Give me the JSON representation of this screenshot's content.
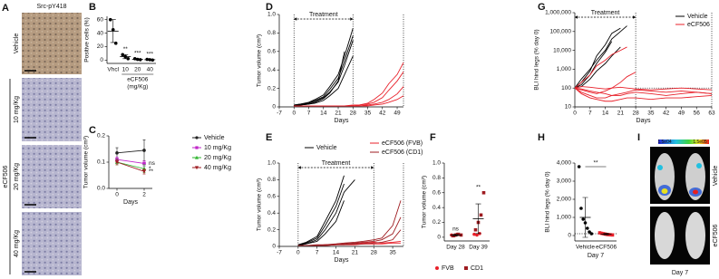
{
  "panel_a": {
    "label": "A",
    "title": "Src-pY418",
    "rows": [
      "Vehicle",
      "10 mg/Kg",
      "20 mg/Kg",
      "40 mg/Kg"
    ],
    "group": "eCF506"
  },
  "panel_i": {
    "label": "I",
    "scale": [
      "1.5e04",
      "1.5e05"
    ],
    "rows": [
      "Vehicle",
      "eCF506"
    ],
    "footer": "Day 7"
  },
  "chart_data": [
    {
      "type": "dot",
      "label": "B",
      "ylabel": "Positive cells (%)",
      "categories": [
        "Vhcl",
        "10",
        "20",
        "40"
      ],
      "xlabel": "eCF506",
      "xlabel2": "(mg/Kg)",
      "ylim": [
        -5,
        65
      ],
      "yticks": [
        0,
        20,
        40,
        60
      ],
      "series": [
        {
          "color": "#000000",
          "marker": "circle",
          "points": [
            [
              60,
              45,
              25
            ],
            [
              8,
              5,
              2
            ],
            [
              2,
              1,
              0.5
            ],
            [
              1,
              0.5,
              0
            ]
          ]
        }
      ],
      "means": [
        43,
        5,
        1.2,
        0.5
      ],
      "errors": [
        17,
        3,
        0.8,
        0.5
      ],
      "stars": [
        null,
        "**",
        "***",
        "***"
      ]
    },
    {
      "type": "line",
      "label": "C",
      "ylabel": "Tumor volume (cm³)",
      "xlabel": "Days",
      "x": [
        0,
        2
      ],
      "xlim": [
        -0.6,
        2.6
      ],
      "xticks": [
        0,
        2
      ],
      "ylim": [
        0,
        0.2
      ],
      "yticks": [
        {
          "value": 0,
          "label": "0.0"
        },
        0.1,
        0.2
      ],
      "legend": "right",
      "series": [
        {
          "name": "Vehicle",
          "color": "#222222",
          "marker": "circle",
          "values": [
            0.135,
            0.145
          ],
          "errors": [
            0.02,
            0.04
          ]
        },
        {
          "name": "10 mg/Kg",
          "color": "#c026c9",
          "marker": "square",
          "values": [
            0.11,
            0.095
          ],
          "errors": [
            0.01,
            0.01
          ]
        },
        {
          "name": "20 mg/Kg",
          "color": "#2fb52f",
          "marker": "triangle",
          "values": [
            0.1,
            0.075
          ],
          "errors": [
            0.01,
            0.015
          ]
        },
        {
          "name": "40 mg/Kg",
          "color": "#9e1b20",
          "marker": "triangle-down",
          "values": [
            0.1,
            0.065
          ],
          "errors": [
            0.01,
            0.01
          ]
        }
      ],
      "annotations": [
        null,
        "ns",
        "*",
        "**"
      ]
    },
    {
      "type": "line",
      "label": "D",
      "ylabel": "Tumor volume (cm³)",
      "xlabel": "Days",
      "x": [
        0,
        3,
        7,
        10,
        14,
        17,
        21,
        24,
        28,
        31,
        35,
        38,
        42,
        45,
        49,
        52
      ],
      "xlim": [
        -7,
        52
      ],
      "xticks": [
        -7,
        0,
        7,
        14,
        21,
        28,
        35,
        42,
        49
      ],
      "ylim": [
        0,
        1
      ],
      "yticks": [
        0,
        0.2,
        0.4,
        0.6,
        0.8,
        {
          "value": 1,
          "label": "1.0"
        }
      ],
      "treatment": {
        "label": "Treatment",
        "start": 0,
        "end": 28
      },
      "vlines": [
        0,
        28,
        52
      ],
      "series": [
        {
          "color": "#000000",
          "lines": [
            [
              0.02,
              0.03,
              0.05,
              0.08,
              0.13,
              0.22,
              0.35,
              0.55,
              0.85,
              null,
              null,
              null,
              null,
              null,
              null,
              null
            ],
            [
              0.02,
              0.03,
              0.04,
              0.07,
              0.11,
              0.19,
              0.31,
              0.5,
              0.77,
              null,
              null,
              null,
              null,
              null,
              null,
              null
            ],
            [
              0.02,
              0.02,
              0.04,
              0.06,
              0.1,
              0.16,
              0.27,
              0.45,
              0.72,
              null,
              null,
              null,
              null,
              null,
              null,
              null
            ],
            [
              0.01,
              0.02,
              0.03,
              0.05,
              0.09,
              0.15,
              0.28,
              0.6,
              null,
              null,
              null,
              null,
              null,
              null,
              null,
              null
            ],
            [
              0.01,
              0.02,
              0.03,
              0.04,
              0.07,
              0.12,
              0.2,
              0.35,
              0.55,
              null,
              null,
              null,
              null,
              null,
              null,
              null
            ]
          ]
        },
        {
          "color": "#e8202a",
          "lines": [
            [
              0.01,
              0.01,
              0.01,
              0.01,
              0.01,
              0.01,
              0.01,
              0.01,
              0.01,
              0.02,
              0.04,
              0.08,
              0.15,
              0.25,
              0.35,
              0.48
            ],
            [
              0.01,
              0.01,
              0.01,
              0.01,
              0.01,
              0.01,
              0.01,
              0.01,
              0.02,
              0.02,
              0.03,
              0.05,
              0.1,
              0.18,
              0.28,
              0.38
            ],
            [
              0.01,
              0.01,
              0.01,
              0.01,
              0.01,
              0.01,
              0.01,
              0.01,
              0.01,
              0.01,
              0.02,
              0.03,
              0.05,
              0.08,
              0.14,
              0.22
            ],
            [
              0.01,
              0.01,
              0.01,
              0.01,
              0.01,
              0.01,
              0.01,
              0.01,
              0.01,
              0.01,
              0.01,
              0.02,
              0.03,
              0.05,
              0.08,
              0.12
            ]
          ]
        }
      ]
    },
    {
      "type": "line",
      "label": "E",
      "ylabel": "Tumor volume (cm³)",
      "xlabel": "Days",
      "x": [
        0,
        3,
        7,
        10,
        14,
        17,
        21,
        24,
        28,
        31,
        35,
        38
      ],
      "xlim": [
        -7,
        39
      ],
      "xticks": [
        -7,
        0,
        7,
        14,
        21,
        28,
        35
      ],
      "ylim": [
        0,
        1
      ],
      "yticks": [
        0,
        0.2,
        0.4,
        0.6,
        0.8,
        {
          "value": 1,
          "label": "1.0"
        }
      ],
      "legend": "top",
      "treatment": {
        "label": "Treatment",
        "start": 0,
        "end": 28
      },
      "vlines": [
        0,
        28,
        39
      ],
      "series": [
        {
          "name": "Vehicle",
          "color": "#000000",
          "lines": [
            [
              0.02,
              0.05,
              0.12,
              0.3,
              0.55,
              0.85,
              null,
              null,
              null,
              null,
              null,
              null
            ],
            [
              0.02,
              0.04,
              0.1,
              0.25,
              0.48,
              0.75,
              null,
              null,
              null,
              null,
              null,
              null
            ],
            [
              0.02,
              0.03,
              0.08,
              0.2,
              0.4,
              0.65,
              0.8,
              null,
              null,
              null,
              null,
              null
            ],
            [
              0.01,
              0.03,
              0.06,
              0.15,
              0.3,
              0.55,
              null,
              null,
              null,
              null,
              null,
              null
            ]
          ]
        },
        {
          "name": "eCF506 (FVB)",
          "color": "#e8202a",
          "lines": [
            [
              0.01,
              0.01,
              0.01,
              0.02,
              0.02,
              0.03,
              0.03,
              0.04,
              0.05,
              0.04,
              0.05,
              0.06
            ],
            [
              0.01,
              0.01,
              0.01,
              0.01,
              0.02,
              0.02,
              0.02,
              0.03,
              0.03,
              0.03,
              0.04,
              0.04
            ]
          ]
        },
        {
          "name": "eCF506 (CD1)",
          "color": "#9e1b20",
          "lines": [
            [
              0.01,
              0.01,
              0.02,
              0.02,
              0.03,
              0.04,
              0.05,
              0.06,
              0.08,
              0.1,
              0.25,
              0.55
            ],
            [
              0.01,
              0.01,
              0.01,
              0.02,
              0.02,
              0.03,
              0.04,
              0.05,
              0.06,
              0.08,
              0.15,
              0.35
            ],
            [
              0.01,
              0.01,
              0.01,
              0.01,
              0.02,
              0.02,
              0.03,
              0.03,
              0.04,
              0.05,
              0.08,
              0.2
            ]
          ]
        }
      ]
    },
    {
      "type": "dot",
      "label": "F",
      "ylabel": "Tumor volume (cm³)",
      "categories": [
        "Day 28",
        "Day 39"
      ],
      "legend": "bottom",
      "ylim": [
        -0.05,
        1
      ],
      "yticks": [
        0,
        0.2,
        0.4,
        0.6,
        0.8,
        {
          "value": 1,
          "label": "1.0"
        }
      ],
      "series": [
        {
          "name": "FVB",
          "color": "#e8202a",
          "marker": "circle",
          "points": [
            [
              0.03,
              0.02,
              0.04
            ],
            [
              0.04,
              0.03,
              0.05
            ]
          ]
        },
        {
          "name": "CD1",
          "color": "#9e1b20",
          "marker": "square",
          "points": [
            [
              0.02,
              0.03,
              0.04,
              0.03
            ],
            [
              0.1,
              0.2,
              0.3,
              0.6
            ]
          ]
        }
      ],
      "means": [
        0.03,
        0.25
      ],
      "errors": [
        0.01,
        0.2
      ],
      "stars": [
        "ns",
        "**"
      ]
    },
    {
      "type": "line",
      "label": "G",
      "ylabel": "BLI hind legs (% day 0)",
      "xlabel": "Days",
      "yscale": "log",
      "x": [
        0,
        3,
        7,
        10,
        14,
        17,
        21,
        24,
        28,
        35,
        42,
        49,
        56,
        63
      ],
      "xlim": [
        0,
        63
      ],
      "xticks": [
        0,
        7,
        14,
        21,
        28,
        35,
        42,
        49,
        56,
        63
      ],
      "ylim": [
        10,
        1000000
      ],
      "yticks": [
        10,
        100,
        {
          "value": 1000,
          "label": "1,000"
        },
        {
          "value": 10000,
          "label": "10,000"
        },
        {
          "value": 100000,
          "label": "100,000"
        },
        {
          "value": 1000000,
          "label": "1,000,000"
        }
      ],
      "legend": "top-right",
      "treatment": {
        "label": "Treatment",
        "start": 0,
        "end": 28
      },
      "vlines": [
        28,
        63
      ],
      "hline": 100,
      "series": [
        {
          "name": "Vehicle",
          "color": "#000000",
          "lines": [
            [
              100,
              300,
              1000,
              3000,
              10000,
              40000,
              100000,
              200000,
              null,
              null,
              null,
              null,
              null,
              null
            ],
            [
              100,
              200,
              800,
              5000,
              20000,
              80000,
              150000,
              null,
              null,
              null,
              null,
              null,
              null,
              null
            ],
            [
              100,
              150,
              500,
              2000,
              8000,
              30000,
              null,
              null,
              null,
              null,
              null,
              null,
              null,
              null
            ],
            [
              100,
              120,
              300,
              800,
              2000,
              5000,
              15000,
              null,
              null,
              null,
              null,
              null,
              null,
              null
            ]
          ]
        },
        {
          "name": "eCF506",
          "color": "#e8202a",
          "lines": [
            [
              100,
              200,
              500,
              1500,
              3000,
              6000,
              10000,
              15000,
              null,
              null,
              null,
              null,
              null,
              null
            ],
            [
              100,
              80,
              60,
              50,
              70,
              100,
              200,
              400,
              700,
              null,
              null,
              null,
              null,
              null
            ],
            [
              100,
              60,
              40,
              30,
              30,
              40,
              50,
              60,
              80,
              70,
              60,
              70,
              60,
              50
            ],
            [
              100,
              90,
              70,
              60,
              50,
              40,
              40,
              50,
              60,
              50,
              40,
              50,
              60,
              50
            ],
            [
              100,
              120,
              110,
              100,
              90,
              100,
              110,
              100,
              90,
              80,
              90,
              100,
              90,
              80
            ],
            [
              100,
              50,
              30,
              25,
              20,
              20,
              25,
              30,
              30,
              25,
              30,
              30,
              35,
              40
            ]
          ]
        }
      ]
    },
    {
      "type": "dot",
      "label": "H",
      "ylabel": "BLI hind legs (% day 0)",
      "categories": [
        "Vehicle",
        "eCF506"
      ],
      "xlabel": "Day 7",
      "ylim": [
        -300,
        4000
      ],
      "yticks": [
        0,
        {
          "value": 1000,
          "label": "1,000"
        },
        {
          "value": 2000,
          "label": "2,000"
        },
        {
          "value": 3000,
          "label": "3,000"
        },
        {
          "value": 4000,
          "label": "4,000"
        }
      ],
      "hline": 100,
      "bracket": "**",
      "series": [
        {
          "color": "#000000",
          "marker": "circle",
          "points": [
            [
              3800,
              1500,
              900,
              700,
              400,
              200,
              100
            ],
            []
          ]
        },
        {
          "color": "#e8202a",
          "marker": "square",
          "points": [
            [],
            [
              150,
              120,
              100,
              80,
              60,
              50,
              40,
              30
            ]
          ]
        }
      ],
      "means": [
        1000,
        80
      ],
      "errors": [
        1100,
        40
      ]
    }
  ]
}
